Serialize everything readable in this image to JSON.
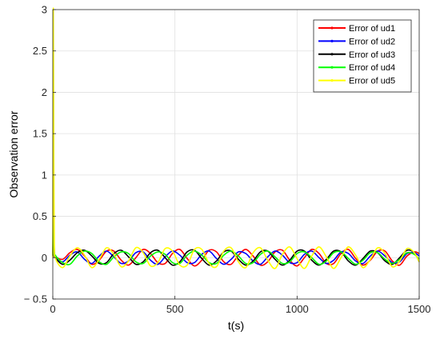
{
  "chart_data": {
    "type": "line",
    "title": "",
    "xlabel": "t(s)",
    "ylabel": "Observation error",
    "xlim": [
      0,
      1500
    ],
    "ylim": [
      -0.5,
      3
    ],
    "xticks": [
      0,
      500,
      1000,
      1500
    ],
    "yticks": [
      -0.5,
      0,
      0.5,
      1,
      1.5,
      2,
      2.5,
      3
    ],
    "grid": true,
    "legend": {
      "position": "top-right"
    },
    "series": [
      {
        "name": "Error of ud1",
        "color": "#ff0000",
        "x": [
          0,
          3,
          6,
          10,
          40,
          70,
          100,
          130,
          160,
          190,
          220,
          250,
          280,
          310,
          340,
          370,
          400,
          430,
          460,
          490,
          520,
          550,
          580,
          610,
          640,
          670,
          700,
          730,
          760,
          790,
          820,
          850,
          880,
          910,
          940,
          970,
          1000,
          1030,
          1060,
          1090,
          1120,
          1150,
          1180,
          1210,
          1240,
          1270,
          1300,
          1330,
          1360,
          1390,
          1420,
          1450,
          1480,
          1500
        ],
        "y": [
          0.05,
          0.35,
          0.1,
          0.02,
          -0.02,
          0.06,
          0.1,
          0.02,
          -0.08,
          -0.03,
          0.08,
          0.08,
          -0.03,
          -0.09,
          0.0,
          0.1,
          0.05,
          -0.06,
          -0.07,
          0.05,
          0.1,
          -0.01,
          -0.1,
          -0.03,
          0.09,
          0.07,
          -0.05,
          -0.08,
          0.03,
          0.1,
          0.02,
          -0.09,
          -0.05,
          0.07,
          0.09,
          -0.03,
          -0.1,
          0.0,
          0.1,
          0.05,
          -0.07,
          -0.07,
          0.05,
          0.1,
          -0.01,
          -0.09,
          -0.03,
          0.08,
          0.08,
          -0.04,
          -0.09,
          0.02,
          0.07,
          0.05
        ]
      },
      {
        "name": "Error of ud2",
        "color": "#0000ff",
        "x": [
          0,
          3,
          6,
          10,
          40,
          70,
          100,
          130,
          160,
          190,
          220,
          250,
          280,
          310,
          340,
          370,
          400,
          430,
          460,
          490,
          520,
          550,
          580,
          610,
          640,
          670,
          700,
          730,
          760,
          790,
          820,
          850,
          880,
          910,
          940,
          970,
          1000,
          1030,
          1060,
          1090,
          1120,
          1150,
          1180,
          1210,
          1240,
          1270,
          1300,
          1330,
          1360,
          1390,
          1420,
          1450,
          1480,
          1500
        ],
        "y": [
          0.03,
          0.5,
          0.08,
          0.0,
          -0.05,
          0.03,
          0.07,
          -0.02,
          -0.07,
          0.02,
          0.08,
          0.01,
          -0.07,
          -0.04,
          0.06,
          0.07,
          -0.03,
          -0.08,
          0.01,
          0.08,
          0.03,
          -0.06,
          -0.06,
          0.04,
          0.08,
          -0.01,
          -0.08,
          -0.02,
          0.07,
          0.05,
          -0.04,
          -0.08,
          0.01,
          0.08,
          0.03,
          -0.06,
          -0.06,
          0.04,
          0.08,
          0.0,
          -0.07,
          -0.03,
          0.07,
          0.05,
          -0.04,
          -0.07,
          0.02,
          0.08,
          0.02,
          -0.06,
          -0.05,
          0.05,
          0.06,
          0.02
        ]
      },
      {
        "name": "Error of ud3",
        "color": "#000000",
        "x": [
          0,
          3,
          6,
          10,
          40,
          70,
          100,
          130,
          160,
          190,
          220,
          250,
          280,
          310,
          340,
          370,
          400,
          430,
          460,
          490,
          520,
          550,
          580,
          610,
          640,
          670,
          700,
          730,
          760,
          790,
          820,
          850,
          880,
          910,
          940,
          970,
          1000,
          1030,
          1060,
          1090,
          1120,
          1150,
          1180,
          1210,
          1240,
          1270,
          1300,
          1330,
          1360,
          1390,
          1420,
          1450,
          1480,
          1500
        ],
        "y": [
          0.02,
          0.3,
          0.05,
          0.0,
          -0.08,
          -0.03,
          0.06,
          0.09,
          0.02,
          -0.07,
          -0.06,
          0.05,
          0.09,
          0.01,
          -0.08,
          -0.05,
          0.06,
          0.09,
          0.0,
          -0.09,
          -0.05,
          0.07,
          0.09,
          -0.01,
          -0.09,
          -0.04,
          0.07,
          0.08,
          -0.02,
          -0.09,
          -0.04,
          0.07,
          0.08,
          -0.02,
          -0.09,
          -0.03,
          0.08,
          0.08,
          -0.03,
          -0.09,
          -0.02,
          0.08,
          0.07,
          -0.04,
          -0.09,
          -0.01,
          0.08,
          0.06,
          -0.04,
          -0.08,
          0.0,
          0.09,
          0.06,
          -0.05
        ]
      },
      {
        "name": "Error of ud4",
        "color": "#00ff00",
        "x": [
          0,
          3,
          6,
          10,
          40,
          70,
          100,
          130,
          160,
          190,
          220,
          250,
          280,
          310,
          340,
          370,
          400,
          430,
          460,
          490,
          520,
          550,
          580,
          610,
          640,
          670,
          700,
          730,
          760,
          790,
          820,
          850,
          880,
          910,
          940,
          970,
          1000,
          1030,
          1060,
          1090,
          1120,
          1150,
          1180,
          1210,
          1240,
          1270,
          1300,
          1330,
          1360,
          1390,
          1420,
          1450,
          1480,
          1500
        ],
        "y": [
          0.04,
          0.8,
          0.1,
          0.03,
          -0.06,
          -0.08,
          0.02,
          0.08,
          0.05,
          -0.05,
          -0.08,
          0.01,
          0.07,
          0.05,
          -0.05,
          -0.07,
          0.02,
          0.07,
          0.04,
          -0.06,
          -0.07,
          0.03,
          0.08,
          0.03,
          -0.06,
          -0.07,
          0.03,
          0.08,
          0.02,
          -0.07,
          -0.06,
          0.04,
          0.08,
          0.01,
          -0.07,
          -0.05,
          0.05,
          0.07,
          0.0,
          -0.08,
          -0.04,
          0.06,
          0.07,
          -0.01,
          -0.08,
          -0.03,
          0.06,
          0.06,
          -0.02,
          -0.07,
          -0.02,
          0.06,
          0.04,
          -0.02
        ]
      },
      {
        "name": "Error of ud5",
        "color": "#ffff00",
        "x": [
          0,
          2,
          4,
          6,
          10,
          40,
          70,
          100,
          130,
          160,
          190,
          220,
          250,
          280,
          310,
          340,
          370,
          400,
          430,
          460,
          490,
          520,
          550,
          580,
          610,
          640,
          670,
          700,
          730,
          760,
          790,
          820,
          850,
          880,
          910,
          940,
          970,
          1000,
          1030,
          1060,
          1090,
          1120,
          1150,
          1180,
          1210,
          1240,
          1270,
          1300,
          1330,
          1360,
          1390,
          1420,
          1450,
          1480,
          1500
        ],
        "y": [
          0.0,
          3.0,
          1.2,
          0.2,
          0.0,
          -0.12,
          0.02,
          0.12,
          0.03,
          -0.12,
          -0.02,
          0.12,
          0.04,
          -0.11,
          -0.04,
          0.12,
          0.06,
          -0.1,
          -0.06,
          0.11,
          0.08,
          -0.09,
          -0.09,
          0.1,
          0.1,
          -0.07,
          -0.11,
          0.08,
          0.12,
          -0.05,
          -0.12,
          0.06,
          0.12,
          -0.03,
          -0.13,
          0.04,
          0.13,
          -0.01,
          -0.13,
          0.02,
          0.13,
          0.01,
          -0.13,
          0.0,
          0.13,
          0.03,
          -0.12,
          -0.02,
          0.12,
          0.05,
          -0.11,
          -0.04,
          0.11,
          0.06,
          -0.05
        ]
      }
    ]
  }
}
